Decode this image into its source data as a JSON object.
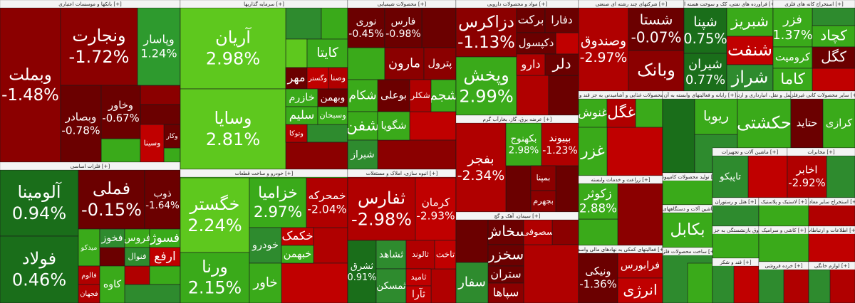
{
  "sectors": [
    {
      "title": "بانکها و موسسات اعتباری [+]",
      "tiles": [
        {
          "name": "وبملت",
          "change": "-1.48%"
        },
        {
          "name": "ونجارت",
          "change": "-1.72%"
        },
        {
          "name": "وپاسار",
          "change": "1.24%"
        },
        {
          "name": "وبصادر",
          "change": "-0.78%"
        },
        {
          "name": "وخاور",
          "change": "-0.67%"
        },
        {
          "name": "وکار"
        },
        {
          "name": "وسینا"
        }
      ]
    },
    {
      "title": "فلزات اساسی [+]",
      "tiles": [
        {
          "name": "آلومینا",
          "change": "0.94%"
        },
        {
          "name": "فولاد",
          "change": "0.46%"
        },
        {
          "name": "فملی",
          "change": "-0.15%"
        },
        {
          "name": "ذوب",
          "change": "-1.64%"
        },
        {
          "name": "میدکو"
        },
        {
          "name": "فالوم"
        },
        {
          "name": "فجهان"
        },
        {
          "name": "فخوز"
        },
        {
          "name": "فروس"
        },
        {
          "name": "فسوژ"
        },
        {
          "name": "فنوال"
        },
        {
          "name": "ارفع"
        },
        {
          "name": "کاوه"
        }
      ]
    },
    {
      "title": "سرمایه گذاریها [+]",
      "tiles": [
        {
          "name": "آریان",
          "change": "2.98%"
        },
        {
          "name": "وسایا",
          "change": "2.81%"
        },
        {
          "name": "کایتا"
        },
        {
          "name": "مهر"
        },
        {
          "name": "وگستر"
        },
        {
          "name": "وصنا"
        },
        {
          "name": "خازرم"
        },
        {
          "name": "وبهمن"
        },
        {
          "name": "سلیم"
        },
        {
          "name": "وسبحان"
        },
        {
          "name": "وتوکا"
        }
      ]
    },
    {
      "title": "خودرو و ساخت قطعات [+]",
      "tiles": [
        {
          "name": "خگستر",
          "change": "2.24%"
        },
        {
          "name": "ورنا",
          "change": "2.15%"
        },
        {
          "name": "خزامیا",
          "change": "2.97%"
        },
        {
          "name": "خمحرکه",
          "change": "-2.04%"
        },
        {
          "name": "خودرو"
        },
        {
          "name": "خکمک"
        },
        {
          "name": "خبهمن"
        },
        {
          "name": "خاور"
        }
      ]
    },
    {
      "title": "محصولات شیمیایی [+]",
      "tiles": [
        {
          "name": "نوری",
          "change": "-0.45%"
        },
        {
          "name": "فارس",
          "change": "-0.98%"
        },
        {
          "name": "مارون"
        },
        {
          "name": "پترول"
        },
        {
          "name": "بوعلی"
        },
        {
          "name": "شکلر"
        },
        {
          "name": "شجم"
        },
        {
          "name": "شکام"
        },
        {
          "name": "شفن"
        },
        {
          "name": "شگویا"
        },
        {
          "name": "شیراز"
        }
      ]
    },
    {
      "title": "انبوه سازی، املاک و مستغلات [+]",
      "tiles": [
        {
          "name": "ثفارس",
          "change": "-2.98%"
        },
        {
          "name": "کرمان",
          "change": "-2.93%"
        },
        {
          "name": "ثشرق",
          "change": "0.91%"
        },
        {
          "name": "ثشاهد"
        },
        {
          "name": "ثالوند"
        },
        {
          "name": "تاخت"
        },
        {
          "name": "ثمسکن"
        },
        {
          "name": "ثامید"
        },
        {
          "name": "ثآرا"
        }
      ]
    },
    {
      "title": "مواد و محصولات دارویی [+]",
      "tiles": [
        {
          "name": "دزاکرس",
          "change": "-1.13%"
        },
        {
          "name": "وپخش",
          "change": "2.99%"
        },
        {
          "name": "برکت"
        },
        {
          "name": "دفارا"
        },
        {
          "name": "دکپسول"
        },
        {
          "name": "دارو"
        },
        {
          "name": "دلر"
        }
      ]
    },
    {
      "title": "عرضه برق، گاز، بخارآب گرم [+]",
      "tiles": [
        {
          "name": "بفجر",
          "change": "-2.34%"
        },
        {
          "name": "بکهنوج",
          "change": "2.98%"
        },
        {
          "name": "بپیوند",
          "change": "-1.23%"
        },
        {
          "name": "بمپنا"
        },
        {
          "name": "بجهرم"
        }
      ]
    },
    {
      "title": "سیمان، آهک و گچ [+]",
      "tiles": [
        {
          "name": "سخاش"
        },
        {
          "name": "سصوفی"
        },
        {
          "name": "سخزر"
        },
        {
          "name": "ستران"
        },
        {
          "name": "سپاها"
        },
        {
          "name": "سفار"
        }
      ]
    },
    {
      "title": "شرکتهای چند رشته ای صنعتی [+]",
      "tiles": [
        {
          "name": "وصندوق",
          "change": "-2.97%"
        },
        {
          "name": "شستا",
          "change": "-0.07%"
        },
        {
          "name": "وبانک"
        }
      ]
    },
    {
      "title": "فراورده های نفتی، کک و سوخت هسته ای [+]",
      "tiles": [
        {
          "name": "شپنا",
          "change": "0.75%"
        },
        {
          "name": "شیران",
          "change": "0.77%"
        },
        {
          "name": "شبریز"
        },
        {
          "name": "شنفت"
        },
        {
          "name": "شراز"
        }
      ]
    },
    {
      "title": "استخراج کانه های فلزی [+]",
      "tiles": [
        {
          "name": "فزر",
          "change": "1.37%"
        },
        {
          "name": "کچاد"
        },
        {
          "name": "کرومیت"
        },
        {
          "name": "کگل"
        },
        {
          "name": "کاما"
        }
      ]
    },
    {
      "title": "محصولات غذایی و آشامیدنی به جز قند و شکر [+]",
      "tiles": [
        {
          "name": "غنوش"
        },
        {
          "name": "غگل"
        },
        {
          "name": "غزر"
        }
      ]
    },
    {
      "title": "زراعت و خدمات وابسته [+]",
      "tiles": [
        {
          "name": "زکوثر",
          "change": "2.88%"
        }
      ]
    },
    {
      "title": "فعالیتهای کمکی به نهادهای مالی واسط [+]",
      "tiles": [
        {
          "name": "ونیکی",
          "change": "-1.36%"
        },
        {
          "name": "فرابورس"
        },
        {
          "name": "انرژی"
        }
      ]
    },
    {
      "title": "رایانه و فعالیتهای وابسته به آن [+]",
      "tiles": [
        {
          "name": "ریوبا"
        }
      ]
    },
    {
      "title": "حمل و نقل، انبارداری و ارتباطات [+]",
      "tiles": [
        {
          "name": "حکشتی"
        }
      ]
    },
    {
      "title": "سایر محصولات کانی غیرفلزی [+]",
      "tiles": [
        {
          "name": "حتاید"
        },
        {
          "name": "کرازی"
        }
      ]
    },
    {
      "title": "تولید محصولات کامپیوتری [+]",
      "tiles": []
    },
    {
      "title": "ماشین آلات و تجهیزات [+]",
      "tiles": [
        {
          "name": "تاپیکو"
        }
      ]
    },
    {
      "title": "مخابرات [+]",
      "tiles": [
        {
          "name": "اخابر",
          "change": "-2.92%"
        }
      ]
    },
    {
      "title": "ماشین آلات و دستگاههای برقی [+]",
      "tiles": [
        {
          "name": "بکابل"
        }
      ]
    },
    {
      "title": "هتل و رستوران [+]",
      "tiles": []
    },
    {
      "title": "لاستیک و پلاستیک [+]",
      "tiles": []
    },
    {
      "title": "استخراج سایر معادن [+]",
      "tiles": []
    },
    {
      "title": "بیمه وصندوق بازنشستگی به جز تامین اجتماعی [+]",
      "tiles": []
    },
    {
      "title": "ساخت محصولات فلزی [+]",
      "tiles": []
    },
    {
      "title": "قند و شکر [+]",
      "tiles": []
    },
    {
      "title": "کاشی و سرامیک [+]",
      "tiles": []
    },
    {
      "title": "اطلاعات و ارتباطات [+]",
      "tiles": []
    },
    {
      "title": "خرده فروشی [+]",
      "tiles": []
    },
    {
      "title": "لوازم خانگی [+]",
      "tiles": []
    }
  ]
}
